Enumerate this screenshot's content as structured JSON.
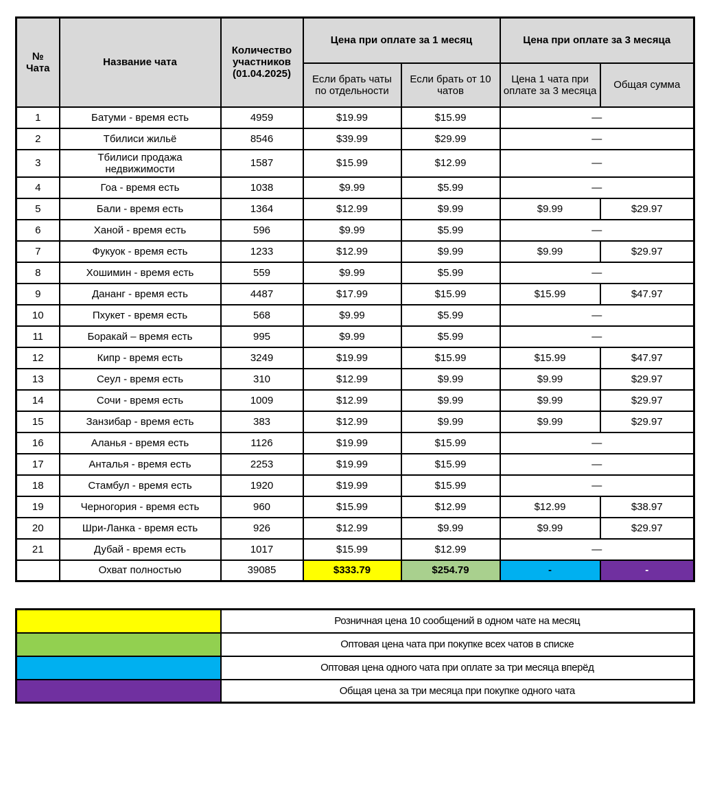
{
  "colors": {
    "header_gray": "#D9D9D9",
    "yellow": "#FFFF00",
    "green_total": "#A9D08E",
    "green_legend": "#92D050",
    "blue": "#00B0F0",
    "purple": "#7030A0",
    "border": "#000000",
    "white_text": "#FFFFFF"
  },
  "table": {
    "dash": "—",
    "headers": {
      "col_num": "№\nЧата",
      "col_name": "Название чата",
      "col_participants": "Количество участников (01.04.2025)",
      "group_1m": "Цена при оплате за 1 месяц",
      "group_3m": "Цена при оплате за 3 месяца",
      "sub_separate": "Если брать чаты по отдельности",
      "sub_from10": "Если брать от 10 чатов",
      "sub_3m_price": "Цена 1 чата при оплате за 3 месяца",
      "sub_total_sum": "Общая сумма"
    },
    "rows": [
      {
        "num": "1",
        "name": "Батуми - время есть",
        "participants": "4959",
        "price1": "$19.99",
        "price10": "$15.99",
        "price3m": null,
        "total3m": null
      },
      {
        "num": "2",
        "name": "Тбилиси жильё",
        "participants": "8546",
        "price1": "$39.99",
        "price10": "$29.99",
        "price3m": null,
        "total3m": null
      },
      {
        "num": "3",
        "name": "Тбилиси продажа\nнедвижимости",
        "participants": "1587",
        "price1": "$15.99",
        "price10": "$12.99",
        "price3m": null,
        "total3m": null
      },
      {
        "num": "4",
        "name": "Гоа - время есть",
        "participants": "1038",
        "price1": "$9.99",
        "price10": "$5.99",
        "price3m": null,
        "total3m": null
      },
      {
        "num": "5",
        "name": "Бали - время есть",
        "participants": "1364",
        "price1": "$12.99",
        "price10": "$9.99",
        "price3m": "$9.99",
        "total3m": "$29.97"
      },
      {
        "num": "6",
        "name": "Ханой - время есть",
        "participants": "596",
        "price1": "$9.99",
        "price10": "$5.99",
        "price3m": null,
        "total3m": null
      },
      {
        "num": "7",
        "name": "Фукуок - время есть",
        "participants": "1233",
        "price1": "$12.99",
        "price10": "$9.99",
        "price3m": "$9.99",
        "total3m": "$29.97"
      },
      {
        "num": "8",
        "name": "Хошимин - время есть",
        "participants": "559",
        "price1": "$9.99",
        "price10": "$5.99",
        "price3m": null,
        "total3m": null
      },
      {
        "num": "9",
        "name": "Дананг - время есть",
        "participants": "4487",
        "price1": "$17.99",
        "price10": "$15.99",
        "price3m": "$15.99",
        "total3m": "$47.97"
      },
      {
        "num": "10",
        "name": "Пхукет - время есть",
        "participants": "568",
        "price1": "$9.99",
        "price10": "$5.99",
        "price3m": null,
        "total3m": null
      },
      {
        "num": "11",
        "name": "Боракай – время есть",
        "participants": "995",
        "price1": "$9.99",
        "price10": "$5.99",
        "price3m": null,
        "total3m": null
      },
      {
        "num": "12",
        "name": "Кипр - время есть",
        "participants": "3249",
        "price1": "$19.99",
        "price10": "$15.99",
        "price3m": "$15.99",
        "total3m": "$47.97"
      },
      {
        "num": "13",
        "name": "Сеул - время есть",
        "participants": "310",
        "price1": "$12.99",
        "price10": "$9.99",
        "price3m": "$9.99",
        "total3m": "$29.97"
      },
      {
        "num": "14",
        "name": "Сочи - время есть",
        "participants": "1009",
        "price1": "$12.99",
        "price10": "$9.99",
        "price3m": "$9.99",
        "total3m": "$29.97"
      },
      {
        "num": "15",
        "name": "Занзибар - время есть",
        "participants": "383",
        "price1": "$12.99",
        "price10": "$9.99",
        "price3m": "$9.99",
        "total3m": "$29.97"
      },
      {
        "num": "16",
        "name": "Аланья - время есть",
        "participants": "1126",
        "price1": "$19.99",
        "price10": "$15.99",
        "price3m": null,
        "total3m": null
      },
      {
        "num": "17",
        "name": "Анталья - время есть",
        "participants": "2253",
        "price1": "$19.99",
        "price10": "$15.99",
        "price3m": null,
        "total3m": null
      },
      {
        "num": "18",
        "name": "Стамбул - время есть",
        "participants": "1920",
        "price1": "$19.99",
        "price10": "$15.99",
        "price3m": null,
        "total3m": null
      },
      {
        "num": "19",
        "name": "Черногория - время есть",
        "participants": "960",
        "price1": "$15.99",
        "price10": "$12.99",
        "price3m": "$12.99",
        "total3m": "$38.97"
      },
      {
        "num": "20",
        "name": "Шри-Ланка - время есть",
        "participants": "926",
        "price1": "$12.99",
        "price10": "$9.99",
        "price3m": "$9.99",
        "total3m": "$29.97"
      },
      {
        "num": "21",
        "name": "Дубай - время есть",
        "participants": "1017",
        "price1": "$15.99",
        "price10": "$12.99",
        "price3m": null,
        "total3m": null
      }
    ],
    "total_row": {
      "num": "",
      "name": "Охват полностью",
      "participants": "39085",
      "price1": "$333.79",
      "price10": "$254.79",
      "price3m": "-",
      "total3m": "-"
    }
  },
  "legend": [
    {
      "color": "#FFFF00",
      "label": "Розничная цена 10 сообщений в одном чате на месяц"
    },
    {
      "color": "#92D050",
      "label": "Оптовая цена чата при покупке всех чатов в списке"
    },
    {
      "color": "#00B0F0",
      "label": "Оптовая цена одного чата при оплате за три месяца вперёд"
    },
    {
      "color": "#7030A0",
      "label": "Общая цена за три месяца при покупке одного чата"
    }
  ]
}
